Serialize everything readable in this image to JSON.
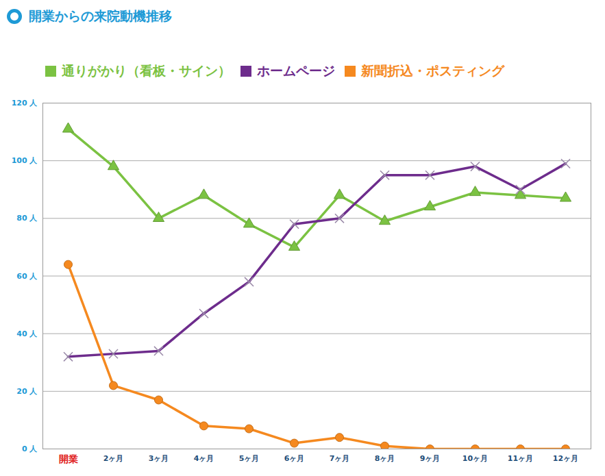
{
  "chart_data": {
    "type": "line",
    "title": "開業からの来院動機推移",
    "categories": [
      "開業",
      "2ヶ月",
      "3ヶ月",
      "4ヶ月",
      "5ヶ月",
      "6ヶ月",
      "7ヶ月",
      "8ヶ月",
      "9ヶ月",
      "10ヶ月",
      "11ヶ月",
      "12ヶ月"
    ],
    "series": [
      {
        "name": "通りがかり（看板・サイン）",
        "color": "#7bc242",
        "marker": "triangle",
        "values": [
          111,
          98,
          80,
          88,
          78,
          70,
          88,
          79,
          84,
          89,
          88,
          87
        ]
      },
      {
        "name": "ホームページ",
        "color": "#6d2c8c",
        "marker": "x",
        "values": [
          32,
          33,
          34,
          47,
          58,
          78,
          80,
          95,
          95,
          98,
          90,
          99
        ]
      },
      {
        "name": "新聞折込・ポスティング",
        "color": "#f5891f",
        "marker": "circle",
        "values": [
          64,
          22,
          17,
          8,
          7,
          2,
          4,
          1,
          0,
          0,
          0,
          0
        ]
      }
    ],
    "ylim": [
      0,
      120
    ],
    "yticks": [
      {
        "value": 0,
        "label": "0 人"
      },
      {
        "value": 20,
        "label": "20 人"
      },
      {
        "value": 40,
        "label": "40 人"
      },
      {
        "value": 60,
        "label": "60 人"
      },
      {
        "value": 80,
        "label": "80 人"
      },
      {
        "value": 100,
        "label": "100 人"
      },
      {
        "value": 120,
        "label": "120 人"
      }
    ],
    "grid": true,
    "legend": "top"
  }
}
